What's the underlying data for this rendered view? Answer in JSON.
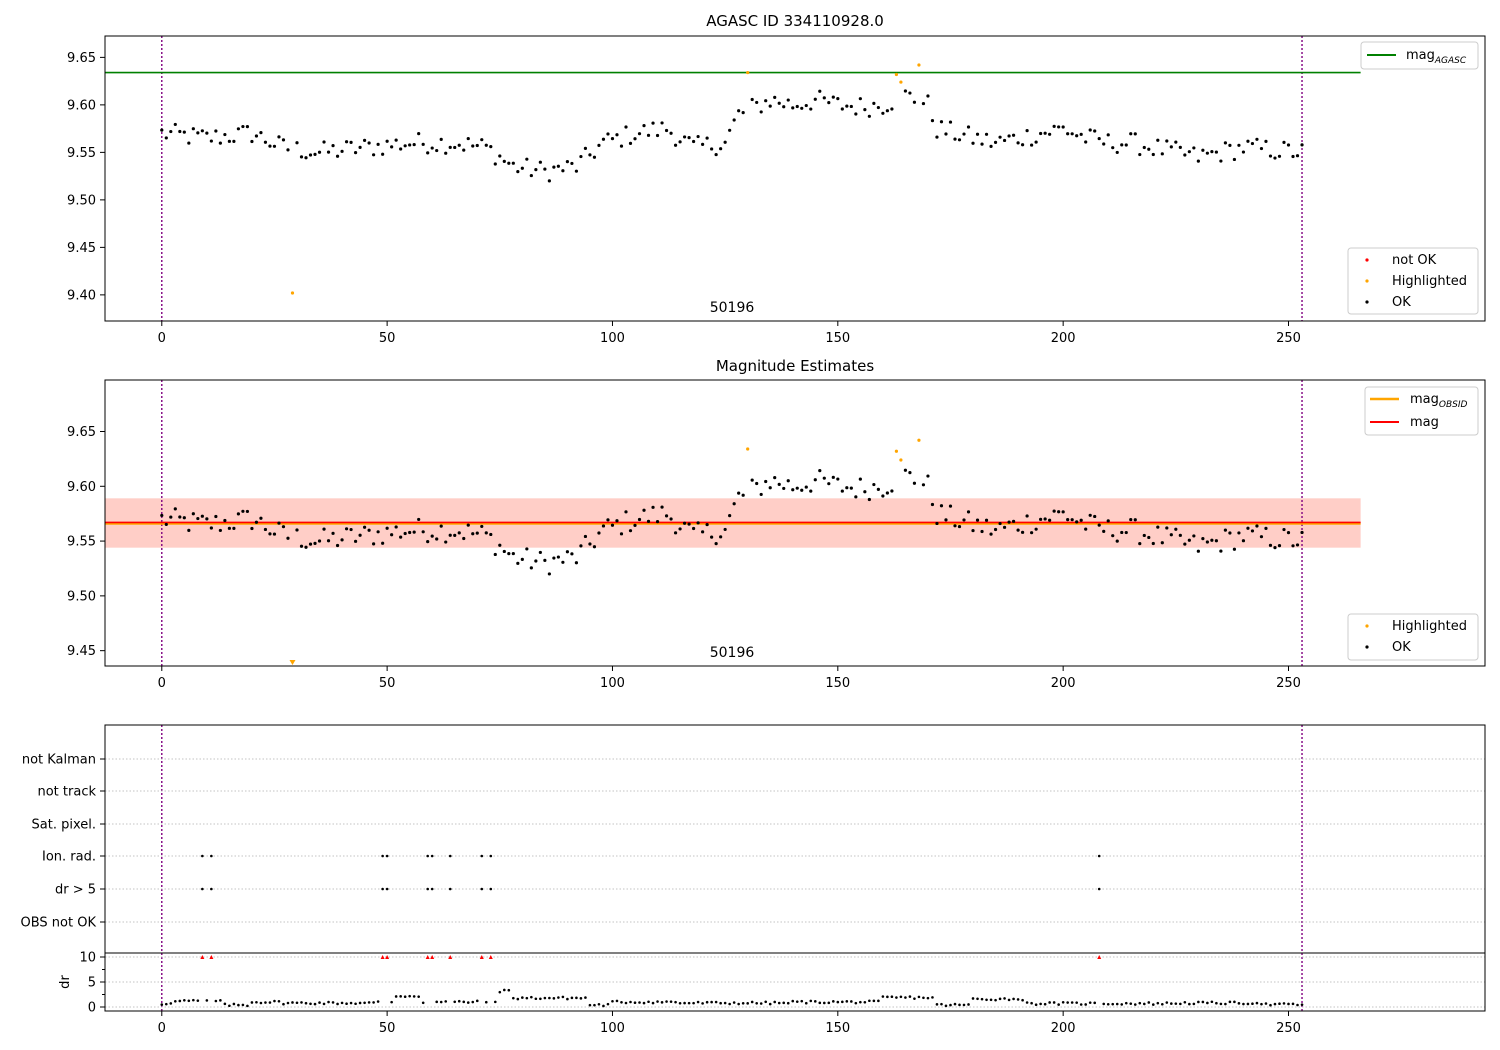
{
  "figure": {
    "panel1_title": "AGASC ID 334110928.0",
    "panel2_title": "Magnitude Estimates",
    "obsid_label": "50196"
  },
  "chart_data": [
    {
      "type": "scatter",
      "title": "AGASC ID 334110928.0",
      "annotation": "50196",
      "xlim": [
        -12.6,
        293.6
      ],
      "ylim": [
        9.3725,
        9.6725
      ],
      "xticks": [
        0,
        50,
        100,
        150,
        200,
        250
      ],
      "yticks": [
        9.4,
        9.45,
        9.5,
        9.55,
        9.6,
        9.65
      ],
      "vlines": [
        0,
        253
      ],
      "hline": {
        "name": "mag_AGASC",
        "label_main": "mag",
        "label_sub": "AGASC",
        "y": 9.634,
        "x_range": [
          -12.6,
          266
        ],
        "color": "#008000"
      },
      "legend_lines": {
        "placement": "top-right"
      },
      "legend_points": {
        "placement": "bottom-right",
        "entries": [
          "not OK",
          "Highlighted",
          "OK"
        ]
      },
      "highlighted": {
        "x": [
          29,
          130,
          163,
          164,
          168
        ],
        "y": [
          9.402,
          9.634,
          9.632,
          9.624,
          9.642
        ]
      }
    },
    {
      "type": "scatter",
      "title": "Magnitude Estimates",
      "annotation": "50196",
      "xlim": [
        -12.6,
        293.6
      ],
      "ylim": [
        9.436,
        9.697
      ],
      "xticks": [
        0,
        50,
        100,
        150,
        200,
        250
      ],
      "yticks": [
        9.45,
        9.5,
        9.55,
        9.6,
        9.65
      ],
      "vlines": [
        0,
        253
      ],
      "mag_line": {
        "name": "mag",
        "y": 9.567,
        "x_range": [
          -12.6,
          266
        ],
        "color": "#ff0000"
      },
      "obsid_line": {
        "name": "mag_OBSID",
        "label_main": "mag",
        "label_sub": "OBSID",
        "y": 9.566,
        "x_range": [
          -12.6,
          266
        ],
        "color": "#ffa500"
      },
      "band_outer": [
        9.544,
        9.589
      ],
      "band_inner": [
        9.544,
        9.589
      ],
      "legend_lines": {
        "placement": "top-right"
      },
      "legend_points": {
        "placement": "bottom-right",
        "entries": [
          "Highlighted",
          "OK"
        ]
      },
      "highlighted": {
        "x": [
          29,
          130,
          163,
          164,
          168
        ],
        "y": [
          9.44,
          9.634,
          9.632,
          9.624,
          9.642
        ]
      }
    },
    {
      "type": "scatter",
      "xlim": [
        -12.6,
        293.6
      ],
      "xticks": [
        0,
        50,
        100,
        150,
        200,
        250
      ],
      "vlines": [
        0,
        253
      ],
      "flag_rows": [
        "not Kalman",
        "not track",
        "Sat. pixel.",
        "Ion. rad.",
        "dr > 5",
        "OBS not OK"
      ],
      "flag_points": {
        "Ion. rad.": [
          9,
          11,
          49,
          50,
          59,
          60,
          64,
          71,
          73,
          208
        ],
        "dr > 5": [
          9,
          11,
          49,
          50,
          59,
          60,
          64,
          71,
          73,
          208
        ]
      },
      "dr": {
        "ylabel": "dr",
        "yticks": [
          0,
          5,
          10
        ],
        "ylim": [
          -0.8,
          10.8
        ],
        "capped_x": [
          9,
          11,
          49,
          50,
          59,
          60,
          64,
          71,
          73,
          208
        ],
        "capped_value": 10
      }
    }
  ]
}
